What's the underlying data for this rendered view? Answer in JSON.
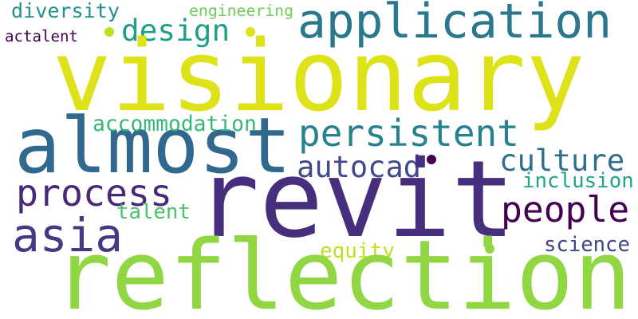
{
  "words": [
    {
      "text": "diversity",
      "color": "#21908d"
    },
    {
      "text": "engineering",
      "color": "#6ccd5a"
    },
    {
      "text": "application",
      "color": "#2a788e"
    },
    {
      "text": "actalent",
      "color": "#440154"
    },
    {
      "text": "design",
      "color": "#1f9e89"
    },
    {
      "text": "visionary",
      "color": "#dde318"
    },
    {
      "text": "almost",
      "color": "#31688e"
    },
    {
      "text": "accommodation",
      "color": "#35b779"
    },
    {
      "text": "persistent",
      "color": "#26828e"
    },
    {
      "text": "culture",
      "color": "#2e6e8e"
    },
    {
      "text": "autocad",
      "color": "#3e4a89"
    },
    {
      "text": "process",
      "color": "#482878"
    },
    {
      "text": "inclusion",
      "color": "#21a685"
    },
    {
      "text": "revit",
      "color": "#472f7d"
    },
    {
      "text": "people",
      "color": "#440154"
    },
    {
      "text": "asia",
      "color": "#443a83"
    },
    {
      "text": "talent",
      "color": "#4ac16d"
    },
    {
      "text": "equity",
      "color": "#c2df23"
    },
    {
      "text": "science",
      "color": "#414487"
    },
    {
      "text": "reflection",
      "color": "#90d743"
    }
  ],
  "dot_colors": [
    "#c2df23",
    "#dde318",
    "#440154",
    "#90d743"
  ]
}
